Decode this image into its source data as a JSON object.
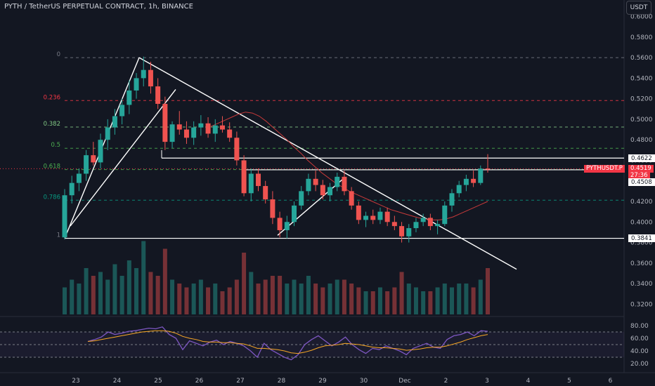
{
  "header": {
    "title": "PYTH / TetherUS PERPETUAL CONTRACT, 1h, BINANCE",
    "currency_button": "USDT"
  },
  "chart_data": {
    "type": "candlestick",
    "symbol": "PYTHUSDT.P",
    "interval": "1h",
    "exchange": "BINANCE",
    "y_axis": {
      "ticks": [
        "0.6000",
        "0.5800",
        "0.5600",
        "0.5400",
        "0.5200",
        "0.5000",
        "0.4800",
        "0.4600",
        "0.4400",
        "0.4200",
        "0.4000",
        "0.3800",
        "0.3600",
        "0.3400",
        "0.3200"
      ],
      "range": [
        0.31,
        0.612
      ]
    },
    "x_axis": {
      "ticks": [
        "23",
        "24",
        "25",
        "26",
        "27",
        "28",
        "29",
        "30",
        "Dec",
        "2",
        "3",
        "4",
        "5",
        "6"
      ]
    },
    "fibonacci": {
      "levels": [
        {
          "label": "0",
          "price": 0.56,
          "color": "#787b86"
        },
        {
          "label": "0.236",
          "price": 0.5182,
          "color": "#f23645"
        },
        {
          "label": "0.382",
          "price": 0.4924,
          "color": "#81c784"
        },
        {
          "label": "0.5",
          "price": 0.4718,
          "color": "#4caf50"
        },
        {
          "label": "0.618",
          "price": 0.451,
          "color": "#4caf50"
        },
        {
          "label": "0.786",
          "price": 0.4212,
          "color": "#089981"
        },
        {
          "label": "1",
          "price": 0.3841,
          "color": "#787b86"
        }
      ]
    },
    "price_labels": [
      {
        "text": "0.4622",
        "price": 0.4622,
        "style": "white"
      },
      {
        "text": "0.4508",
        "price": 0.4508,
        "style": "white-below"
      },
      {
        "text": "0.3841",
        "price": 0.3841,
        "style": "white"
      }
    ],
    "last_price": {
      "symbol": "PYTHUSDT.P",
      "price": "0.4519",
      "countdown": "27:36",
      "value": 0.4519
    },
    "candles_ohlc": [
      [
        0.385,
        0.432,
        0.383,
        0.426
      ],
      [
        0.426,
        0.445,
        0.418,
        0.438
      ],
      [
        0.438,
        0.452,
        0.43,
        0.447
      ],
      [
        0.447,
        0.47,
        0.44,
        0.465
      ],
      [
        0.465,
        0.478,
        0.455,
        0.458
      ],
      [
        0.458,
        0.486,
        0.452,
        0.48
      ],
      [
        0.48,
        0.5,
        0.47,
        0.492
      ],
      [
        0.492,
        0.51,
        0.485,
        0.503
      ],
      [
        0.503,
        0.52,
        0.495,
        0.514
      ],
      [
        0.514,
        0.538,
        0.505,
        0.528
      ],
      [
        0.528,
        0.545,
        0.52,
        0.54
      ],
      [
        0.54,
        0.561,
        0.532,
        0.548
      ],
      [
        0.548,
        0.556,
        0.525,
        0.532
      ],
      [
        0.532,
        0.54,
        0.51,
        0.515
      ],
      [
        0.515,
        0.522,
        0.47,
        0.478
      ],
      [
        0.478,
        0.498,
        0.472,
        0.495
      ],
      [
        0.495,
        0.508,
        0.485,
        0.49
      ],
      [
        0.49,
        0.498,
        0.476,
        0.482
      ],
      [
        0.482,
        0.498,
        0.475,
        0.492
      ],
      [
        0.492,
        0.504,
        0.484,
        0.496
      ],
      [
        0.496,
        0.502,
        0.482,
        0.486
      ],
      [
        0.486,
        0.5,
        0.478,
        0.494
      ],
      [
        0.494,
        0.503,
        0.487,
        0.49
      ],
      [
        0.49,
        0.497,
        0.478,
        0.482
      ],
      [
        0.482,
        0.488,
        0.455,
        0.46
      ],
      [
        0.46,
        0.465,
        0.425,
        0.428
      ],
      [
        0.428,
        0.452,
        0.42,
        0.447
      ],
      [
        0.447,
        0.452,
        0.43,
        0.435
      ],
      [
        0.435,
        0.44,
        0.418,
        0.422
      ],
      [
        0.422,
        0.43,
        0.398,
        0.404
      ],
      [
        0.404,
        0.41,
        0.385,
        0.392
      ],
      [
        0.392,
        0.406,
        0.384,
        0.4
      ],
      [
        0.4,
        0.42,
        0.396,
        0.416
      ],
      [
        0.416,
        0.435,
        0.412,
        0.43
      ],
      [
        0.43,
        0.447,
        0.426,
        0.442
      ],
      [
        0.442,
        0.45,
        0.43,
        0.436
      ],
      [
        0.436,
        0.441,
        0.422,
        0.426
      ],
      [
        0.426,
        0.438,
        0.42,
        0.434
      ],
      [
        0.434,
        0.448,
        0.43,
        0.444
      ],
      [
        0.444,
        0.45,
        0.426,
        0.43
      ],
      [
        0.43,
        0.434,
        0.412,
        0.416
      ],
      [
        0.416,
        0.42,
        0.398,
        0.402
      ],
      [
        0.402,
        0.41,
        0.395,
        0.406
      ],
      [
        0.406,
        0.412,
        0.398,
        0.402
      ],
      [
        0.402,
        0.414,
        0.398,
        0.41
      ],
      [
        0.41,
        0.414,
        0.396,
        0.4
      ],
      [
        0.4,
        0.406,
        0.392,
        0.396
      ],
      [
        0.396,
        0.4,
        0.38,
        0.386
      ],
      [
        0.386,
        0.398,
        0.38,
        0.394
      ],
      [
        0.394,
        0.404,
        0.39,
        0.4
      ],
      [
        0.4,
        0.408,
        0.396,
        0.404
      ],
      [
        0.404,
        0.408,
        0.392,
        0.396
      ],
      [
        0.396,
        0.402,
        0.388,
        0.398
      ],
      [
        0.398,
        0.42,
        0.396,
        0.416
      ],
      [
        0.416,
        0.432,
        0.41,
        0.428
      ],
      [
        0.428,
        0.44,
        0.424,
        0.436
      ],
      [
        0.436,
        0.446,
        0.43,
        0.442
      ],
      [
        0.442,
        0.45,
        0.434,
        0.438
      ],
      [
        0.438,
        0.455,
        0.436,
        0.452
      ],
      [
        0.452,
        0.466,
        0.448,
        0.451
      ]
    ],
    "volumes": [
      0.35,
      0.45,
      0.4,
      0.6,
      0.5,
      0.55,
      0.45,
      0.65,
      0.5,
      0.7,
      0.6,
      0.95,
      0.55,
      0.5,
      0.85,
      0.45,
      0.4,
      0.35,
      0.4,
      0.45,
      0.35,
      0.4,
      0.3,
      0.35,
      0.45,
      0.8,
      0.55,
      0.4,
      0.45,
      0.5,
      0.5,
      0.4,
      0.45,
      0.4,
      0.5,
      0.4,
      0.35,
      0.4,
      0.45,
      0.45,
      0.4,
      0.35,
      0.3,
      0.3,
      0.35,
      0.3,
      0.35,
      0.55,
      0.4,
      0.35,
      0.3,
      0.3,
      0.35,
      0.4,
      0.35,
      0.4,
      0.4,
      0.35,
      0.45,
      0.6
    ],
    "rsi": {
      "ticks": [
        "80.00",
        "60.00",
        "40.00",
        "20.00"
      ],
      "range": [
        10,
        90
      ],
      "upper": 70,
      "mid": 50,
      "lower": 30,
      "values": [
        55,
        58,
        62,
        70,
        66,
        68,
        71,
        72,
        74,
        76,
        75,
        78,
        66,
        60,
        42,
        56,
        52,
        48,
        54,
        57,
        50,
        55,
        52,
        48,
        40,
        30,
        52,
        42,
        36,
        30,
        26,
        34,
        50,
        58,
        64,
        56,
        48,
        54,
        62,
        50,
        42,
        36,
        44,
        42,
        48,
        44,
        40,
        34,
        44,
        48,
        52,
        46,
        44,
        58,
        64,
        66,
        70,
        64,
        72,
        71
      ],
      "ma": [
        55,
        56,
        58,
        60,
        62,
        64,
        66,
        68,
        70,
        71,
        72,
        72,
        71,
        68,
        63,
        60,
        58,
        55,
        54,
        54,
        53,
        53,
        52,
        51,
        48,
        44,
        44,
        43,
        42,
        40,
        37,
        36,
        38,
        41,
        45,
        48,
        49,
        50,
        52,
        51,
        50,
        48,
        46,
        45,
        45,
        44,
        43,
        41,
        42,
        43,
        45,
        46,
        46,
        48,
        51,
        54,
        58,
        61,
        64,
        66
      ]
    },
    "moving_average": [
      0.493,
      0.496,
      0.499,
      0.502,
      0.505,
      0.507,
      0.506,
      0.503,
      0.498,
      0.492,
      0.486,
      0.48,
      0.473,
      0.467,
      0.46,
      0.454,
      0.448,
      0.443,
      0.438,
      0.434,
      0.43,
      0.427,
      0.424,
      0.421,
      0.418,
      0.415,
      0.412,
      0.41,
      0.408,
      0.406,
      0.404,
      0.403,
      0.402,
      0.402,
      0.403,
      0.405,
      0.408,
      0.411,
      0.414,
      0.417,
      0.42
    ]
  }
}
